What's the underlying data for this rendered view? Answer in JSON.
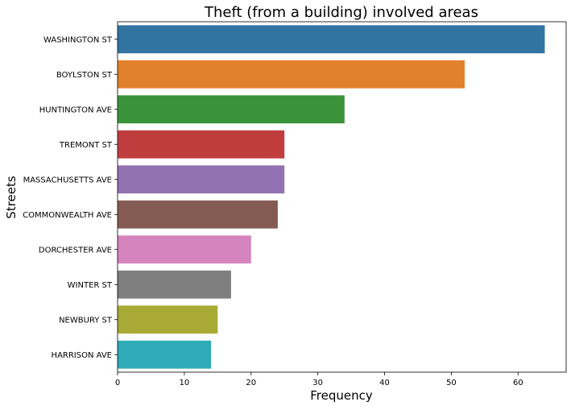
{
  "chart_data": {
    "type": "bar",
    "orientation": "horizontal",
    "title": "Theft (from a building) involved areas",
    "xlabel": "Frequency",
    "ylabel": "Streets",
    "categories": [
      "WASHINGTON ST",
      "BOYLSTON ST",
      "HUNTINGTON AVE",
      "TREMONT ST",
      "MASSACHUSETTS AVE",
      "COMMONWEALTH AVE",
      "DORCHESTER AVE",
      "WINTER ST",
      "NEWBURY ST",
      "HARRISON AVE"
    ],
    "values": [
      64,
      52,
      34,
      25,
      25,
      24,
      20,
      17,
      15,
      14
    ],
    "colors": [
      "#3274a1",
      "#e1812c",
      "#3a923a",
      "#c03d3e",
      "#9372b2",
      "#845b53",
      "#d684bd",
      "#7f7f7f",
      "#a9aa35",
      "#2eabb8"
    ],
    "xlim": [
      0,
      67.2
    ],
    "xticks": [
      0,
      10,
      20,
      30,
      40,
      50,
      60
    ],
    "grid": false,
    "legend": "none"
  }
}
